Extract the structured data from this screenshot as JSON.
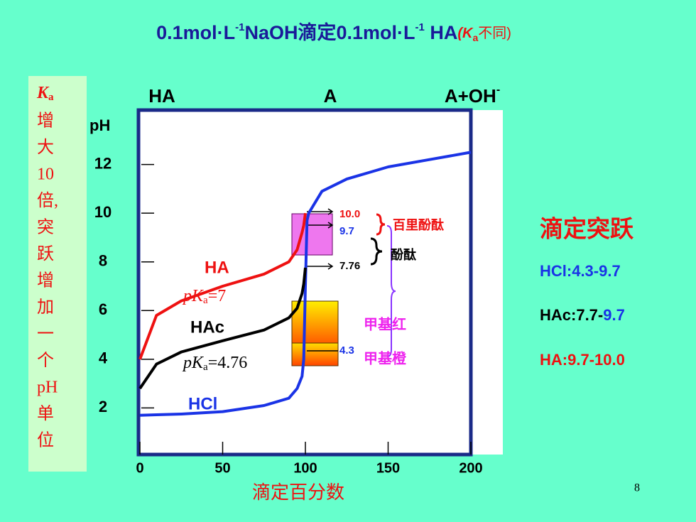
{
  "title": [
    "0.1mol·L",
    "-1",
    "NaOH滴定0.1mol·L",
    "-1",
    " HA",
    "(K",
    "a",
    "不同)"
  ],
  "side_note": {
    "k": "K",
    "k_sub": "a",
    "lines": [
      "增",
      "大",
      "10",
      "倍,",
      "突",
      "跃",
      "增",
      "加",
      "一",
      "个",
      "pH",
      "单",
      "位"
    ]
  },
  "right_panel": {
    "heading": "滴定突跃",
    "hcl": "HCl:4.3-9.7",
    "hac": "HAc:7.7-",
    "hac_end": "9.7",
    "ha": "HA:9.7-10.0"
  },
  "page_number": "8",
  "chart_data": {
    "type": "line",
    "y_label": "pH",
    "x_label": "滴定百分数",
    "regions": [
      "HA",
      "A",
      "A+OH",
      "-"
    ],
    "x": [
      0,
      10,
      25,
      50,
      75,
      90,
      95,
      98,
      99,
      100,
      101,
      102,
      110,
      125,
      150,
      175,
      200
    ],
    "series": [
      {
        "name": "HCl",
        "color": "#1a33e6",
        "values": [
          1.7,
          1.72,
          1.75,
          1.85,
          2.1,
          2.4,
          2.8,
          3.3,
          4.0,
          7.0,
          9.7,
          10.0,
          10.9,
          11.4,
          11.9,
          12.2,
          12.5
        ]
      },
      {
        "name": "HAc",
        "color": "#000000",
        "values": [
          2.8,
          3.8,
          4.3,
          4.76,
          5.2,
          5.7,
          6.1,
          6.7,
          7.1,
          7.76,
          null,
          null,
          null,
          null,
          null,
          null,
          null
        ]
      },
      {
        "name": "HA",
        "color": "#ee1111",
        "values": [
          4.0,
          5.8,
          6.4,
          7.0,
          7.5,
          8.0,
          8.5,
          9.2,
          9.5,
          10.0,
          null,
          null,
          null,
          null,
          null,
          null,
          null
        ]
      }
    ],
    "curve_labels": {
      "ha_pk": "pK",
      "ha_pk_sub": "a",
      "ha_pk_val": "=7",
      "hac_pk": "pK",
      "hac_pk_sub": "a",
      "hac_pk_val": "=4.76"
    },
    "annotations": {
      "a100": "10.0",
      "a97": "9.7",
      "a776": "7.76",
      "a43": "4.3",
      "thymol": "百里酚酞",
      "phenol": "酚酞",
      "mred": "甲基红",
      "morange": "甲基橙"
    },
    "xlim": [
      0,
      200
    ],
    "ylim": [
      0,
      14
    ],
    "xticks": [
      0,
      50,
      100,
      150,
      200
    ],
    "yticks": [
      2,
      4,
      6,
      8,
      10,
      12
    ]
  }
}
